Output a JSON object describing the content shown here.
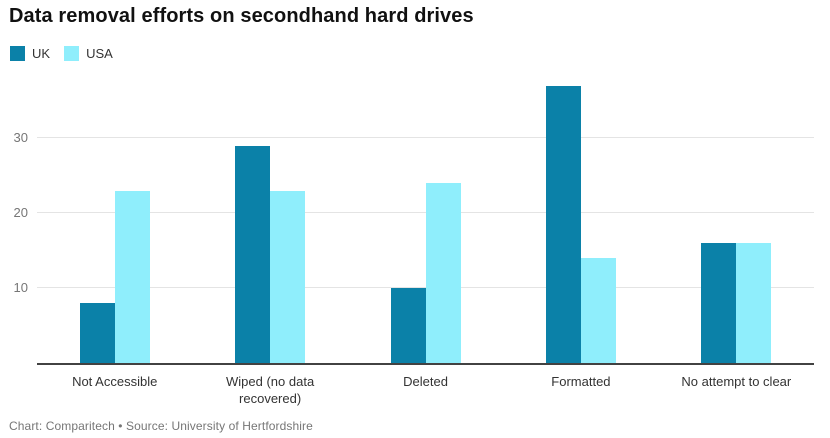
{
  "header": {
    "title": "Data removal efforts on secondhand hard drives"
  },
  "footer": {
    "attribution": "Chart: Comparitech • Source: University of Hertfordshire"
  },
  "colors": {
    "uk_bar": "#0b81a8",
    "usa_bar": "#8feefc",
    "gridline": "#e4e4e4",
    "axis_line": "#424242",
    "tick_label": "#767676",
    "category_label": "#333333"
  },
  "chart_data": {
    "type": "bar",
    "title": "Data removal efforts on secondhand hard drives",
    "categories": [
      "Not Accessible",
      "Wiped (no data recovered)",
      "Deleted",
      "Formatted",
      "No attempt to clear"
    ],
    "series": [
      {
        "name": "UK",
        "color": "#0b81a8",
        "values": [
          8,
          29,
          10,
          37,
          16
        ]
      },
      {
        "name": "USA",
        "color": "#8feefc",
        "values": [
          23,
          23,
          24,
          14,
          16
        ]
      }
    ],
    "xlabel": "",
    "ylabel": "",
    "yticks": [
      10,
      20,
      30
    ],
    "ylim": [
      0,
      38.4
    ],
    "grid": true,
    "legend_position": "top-left"
  }
}
